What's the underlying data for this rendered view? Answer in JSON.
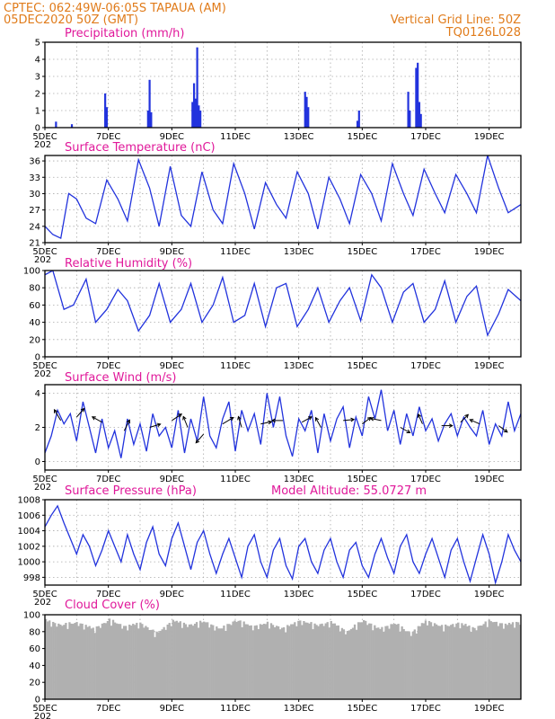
{
  "header": {
    "line1": "CPTEC:   062:49W-06:05S   TAPAUA (AM)",
    "line2": "05DEC2020 50Z (GMT)",
    "right1": "Vertical Grid Line: 50Z",
    "right2": "TQ0126L028"
  },
  "colors": {
    "header": "#e07b1a",
    "title": "#e0189a",
    "line": "#2233dd",
    "cloud": "#b0b0b0"
  },
  "x_axis": {
    "tick_labels": [
      "5DEC",
      "7DEC",
      "9DEC",
      "11DEC",
      "13DEC",
      "15DEC",
      "17DEC",
      "19DEC"
    ],
    "clipped_year_label": "202",
    "start_day": 5,
    "end_day": 20
  },
  "chart_data": [
    {
      "id": "precipitation",
      "type": "bar",
      "title": "Precipitation (mm/h)",
      "ylim": [
        0,
        5
      ],
      "yticks": [
        0,
        1,
        2,
        3,
        4,
        5
      ],
      "grid": true,
      "x": [
        5.35,
        5.85,
        6.9,
        6.95,
        8.25,
        8.3,
        8.35,
        9.65,
        9.7,
        9.75,
        9.8,
        9.85,
        9.9,
        13.2,
        13.25,
        13.3,
        14.85,
        14.9,
        16.45,
        16.5,
        16.7,
        16.75,
        16.8,
        16.85
      ],
      "values": [
        0.35,
        0.2,
        2.0,
        1.2,
        1.0,
        2.8,
        0.9,
        1.5,
        2.6,
        1.7,
        4.7,
        1.3,
        1.0,
        2.1,
        1.8,
        1.2,
        0.4,
        1.0,
        2.1,
        1.0,
        3.5,
        3.8,
        1.5,
        0.8
      ]
    },
    {
      "id": "temperature",
      "type": "line",
      "title": "Surface Temperature (nC)",
      "ylim": [
        21,
        37
      ],
      "yticks": [
        21,
        24,
        27,
        30,
        33,
        36
      ],
      "grid": true,
      "x": [
        5.0,
        5.25,
        5.5,
        5.75,
        6.0,
        6.3,
        6.6,
        6.95,
        7.3,
        7.6,
        7.95,
        8.3,
        8.6,
        8.95,
        9.3,
        9.6,
        9.95,
        10.3,
        10.6,
        10.95,
        11.3,
        11.6,
        11.95,
        12.3,
        12.6,
        12.95,
        13.3,
        13.6,
        13.95,
        14.3,
        14.6,
        14.95,
        15.3,
        15.6,
        15.95,
        16.3,
        16.6,
        16.95,
        17.3,
        17.6,
        17.95,
        18.3,
        18.6,
        18.95,
        19.3,
        19.6,
        20.0
      ],
      "values": [
        24.0,
        22.5,
        21.8,
        30.0,
        29.0,
        25.5,
        24.5,
        32.5,
        29.0,
        25.0,
        36.2,
        31.0,
        24.0,
        35.0,
        26.0,
        24.0,
        34.0,
        27.0,
        24.5,
        35.5,
        30.0,
        23.5,
        32.0,
        28.0,
        25.5,
        34.0,
        30.0,
        23.5,
        33.0,
        29.0,
        24.5,
        33.5,
        30.0,
        25.0,
        35.5,
        30.0,
        26.0,
        34.5,
        30.0,
        26.5,
        33.5,
        30.0,
        26.5,
        37.0,
        31.0,
        26.5,
        28.0
      ]
    },
    {
      "id": "humidity",
      "type": "line",
      "title": "Relative Humidity (%)",
      "ylim": [
        0,
        100
      ],
      "yticks": [
        0,
        20,
        40,
        60,
        80,
        100
      ],
      "grid": true,
      "x": [
        5.0,
        5.25,
        5.6,
        5.9,
        6.3,
        6.6,
        6.95,
        7.3,
        7.6,
        7.95,
        8.3,
        8.6,
        8.95,
        9.3,
        9.6,
        9.95,
        10.3,
        10.6,
        10.95,
        11.3,
        11.6,
        11.95,
        12.3,
        12.6,
        12.95,
        13.3,
        13.6,
        13.95,
        14.3,
        14.6,
        14.95,
        15.3,
        15.6,
        15.95,
        16.3,
        16.6,
        16.95,
        17.3,
        17.6,
        17.95,
        18.3,
        18.6,
        18.95,
        19.3,
        19.6,
        20.0
      ],
      "values": [
        95.0,
        100.0,
        55.0,
        60.0,
        90.0,
        40.0,
        55.0,
        78.0,
        65.0,
        30.0,
        48.0,
        85.0,
        40.0,
        55.0,
        85.0,
        40.0,
        60.0,
        92.0,
        40.0,
        48.0,
        85.0,
        35.0,
        80.0,
        85.0,
        35.0,
        55.0,
        80.0,
        40.0,
        65.0,
        80.0,
        42.0,
        95.0,
        80.0,
        40.0,
        75.0,
        85.0,
        40.0,
        55.0,
        88.0,
        40.0,
        70.0,
        82.0,
        25.0,
        50.0,
        78.0,
        65.0
      ]
    },
    {
      "id": "wind",
      "type": "line",
      "title": "Surface Wind (m/s)",
      "ylim": [
        -0.5,
        4.5
      ],
      "yticks": [
        0,
        2,
        4
      ],
      "grid": true,
      "x": [
        5.0,
        5.2,
        5.4,
        5.6,
        5.8,
        6.0,
        6.2,
        6.4,
        6.6,
        6.8,
        7.0,
        7.2,
        7.4,
        7.6,
        7.8,
        8.0,
        8.2,
        8.4,
        8.6,
        8.8,
        9.0,
        9.2,
        9.4,
        9.6,
        9.8,
        10.0,
        10.2,
        10.4,
        10.6,
        10.8,
        11.0,
        11.2,
        11.4,
        11.6,
        11.8,
        12.0,
        12.2,
        12.4,
        12.6,
        12.8,
        13.0,
        13.2,
        13.4,
        13.6,
        13.8,
        14.0,
        14.2,
        14.4,
        14.6,
        14.8,
        15.0,
        15.2,
        15.4,
        15.6,
        15.8,
        16.0,
        16.2,
        16.4,
        16.6,
        16.8,
        17.0,
        17.2,
        17.4,
        17.6,
        17.8,
        18.0,
        18.2,
        18.4,
        18.6,
        18.8,
        19.0,
        19.2,
        19.4,
        19.6,
        19.8,
        20.0
      ],
      "values": [
        0.5,
        1.5,
        3.0,
        2.2,
        2.8,
        1.2,
        3.5,
        2.0,
        0.5,
        2.5,
        0.8,
        1.8,
        0.2,
        2.5,
        1.0,
        2.2,
        0.6,
        2.8,
        1.5,
        2.0,
        0.8,
        3.0,
        0.5,
        2.5,
        1.2,
        3.8,
        1.5,
        0.8,
        2.5,
        3.5,
        0.6,
        3.0,
        1.8,
        2.8,
        1.0,
        4.0,
        2.0,
        3.8,
        1.5,
        0.3,
        2.5,
        1.8,
        3.0,
        0.5,
        2.8,
        1.2,
        2.5,
        3.2,
        0.8,
        2.6,
        1.5,
        3.8,
        2.5,
        4.2,
        1.8,
        3.0,
        1.0,
        2.8,
        1.5,
        3.2,
        1.8,
        2.5,
        1.2,
        2.2,
        2.8,
        1.5,
        2.6,
        2.0,
        1.5,
        3.0,
        1.0,
        2.2,
        1.5,
        3.5,
        1.8,
        2.8
      ],
      "vectors": [
        {
          "x": 5.5,
          "y": 2.4,
          "u": -0.6,
          "v": 1.0
        },
        {
          "x": 6.0,
          "y": 2.6,
          "u": 0.7,
          "v": 0.8
        },
        {
          "x": 6.8,
          "y": 2.3,
          "u": -0.9,
          "v": 0.5
        },
        {
          "x": 7.5,
          "y": 1.8,
          "u": 0.5,
          "v": 1.0
        },
        {
          "x": 8.3,
          "y": 2.0,
          "u": 1.0,
          "v": 0.3
        },
        {
          "x": 9.0,
          "y": 2.4,
          "u": 0.9,
          "v": 0.6
        },
        {
          "x": 9.5,
          "y": 2.0,
          "u": -0.4,
          "v": 1.0
        },
        {
          "x": 10.0,
          "y": 1.6,
          "u": -0.7,
          "v": -0.8
        },
        {
          "x": 10.6,
          "y": 2.2,
          "u": 1.0,
          "v": 0.6
        },
        {
          "x": 11.2,
          "y": 2.0,
          "u": -0.3,
          "v": 1.0
        },
        {
          "x": 11.8,
          "y": 2.2,
          "u": 1.0,
          "v": 0.2
        },
        {
          "x": 12.5,
          "y": 2.4,
          "u": -1.0,
          "v": 0.0
        },
        {
          "x": 13.1,
          "y": 2.3,
          "u": 0.9,
          "v": 0.5
        },
        {
          "x": 13.7,
          "y": 2.0,
          "u": -0.5,
          "v": 0.9
        },
        {
          "x": 14.4,
          "y": 2.4,
          "u": 1.0,
          "v": 0.1
        },
        {
          "x": 15.0,
          "y": 2.2,
          "u": 0.8,
          "v": 0.6
        },
        {
          "x": 15.6,
          "y": 2.4,
          "u": -1.0,
          "v": 0.2
        },
        {
          "x": 16.2,
          "y": 2.0,
          "u": 0.9,
          "v": -0.5
        },
        {
          "x": 16.9,
          "y": 2.2,
          "u": -0.4,
          "v": 0.9
        },
        {
          "x": 17.5,
          "y": 2.1,
          "u": 1.0,
          "v": 0.0
        },
        {
          "x": 18.1,
          "y": 2.3,
          "u": 0.7,
          "v": 0.7
        },
        {
          "x": 18.7,
          "y": 2.2,
          "u": -0.9,
          "v": 0.4
        },
        {
          "x": 19.3,
          "y": 2.1,
          "u": 0.8,
          "v": -0.6
        }
      ]
    },
    {
      "id": "pressure",
      "type": "line",
      "title": "Surface Pressure (hPa)",
      "annotation": "Model Altitude: 55.0727 m",
      "ylim": [
        997,
        1008
      ],
      "yticks": [
        998,
        1000,
        1002,
        1004,
        1006,
        1008
      ],
      "grid": true,
      "x": [
        5.0,
        5.2,
        5.4,
        5.6,
        5.8,
        6.0,
        6.2,
        6.4,
        6.6,
        6.8,
        7.0,
        7.2,
        7.4,
        7.6,
        7.8,
        8.0,
        8.2,
        8.4,
        8.6,
        8.8,
        9.0,
        9.2,
        9.4,
        9.6,
        9.8,
        10.0,
        10.2,
        10.4,
        10.6,
        10.8,
        11.0,
        11.2,
        11.4,
        11.6,
        11.8,
        12.0,
        12.2,
        12.4,
        12.6,
        12.8,
        13.0,
        13.2,
        13.4,
        13.6,
        13.8,
        14.0,
        14.2,
        14.4,
        14.6,
        14.8,
        15.0,
        15.2,
        15.4,
        15.6,
        15.8,
        16.0,
        16.2,
        16.4,
        16.6,
        16.8,
        17.0,
        17.2,
        17.4,
        17.6,
        17.8,
        18.0,
        18.2,
        18.4,
        18.6,
        18.8,
        19.0,
        19.2,
        19.4,
        19.6,
        19.8,
        20.0
      ],
      "values": [
        1004.5,
        1006.0,
        1007.2,
        1005.0,
        1003.0,
        1001.0,
        1003.5,
        1002.0,
        999.5,
        1001.5,
        1004.0,
        1002.0,
        1000.0,
        1003.5,
        1001.0,
        999.0,
        1002.5,
        1004.5,
        1001.0,
        999.5,
        1003.0,
        1005.0,
        1002.0,
        999.0,
        1002.5,
        1004.0,
        1001.0,
        998.5,
        1001.0,
        1003.0,
        1000.5,
        998.0,
        1002.0,
        1003.5,
        1000.0,
        998.0,
        1001.5,
        1003.0,
        999.5,
        997.8,
        1002.0,
        1003.0,
        1000.0,
        998.5,
        1001.5,
        1003.0,
        1000.0,
        998.0,
        1001.5,
        1002.5,
        999.5,
        998.0,
        1001.0,
        1003.0,
        1000.5,
        998.5,
        1002.0,
        1003.5,
        1000.0,
        998.5,
        1001.0,
        1003.0,
        1000.5,
        998.0,
        1001.5,
        1003.0,
        1000.0,
        997.5,
        1000.5,
        1003.5,
        1001.0,
        997.3,
        1000.0,
        1003.5,
        1001.5,
        1000.0
      ]
    },
    {
      "id": "cloud",
      "type": "area",
      "title": "Cloud Cover (%)",
      "ylim": [
        0,
        100
      ],
      "yticks": [
        0,
        20,
        40,
        60,
        80,
        100
      ],
      "grid": true,
      "x": [
        5.0,
        5.5,
        6.0,
        6.5,
        7.0,
        7.5,
        8.0,
        8.5,
        9.0,
        9.5,
        10.0,
        10.5,
        11.0,
        11.5,
        12.0,
        12.5,
        13.0,
        13.5,
        14.0,
        14.5,
        15.0,
        15.5,
        16.0,
        16.5,
        17.0,
        17.5,
        18.0,
        18.5,
        19.0,
        19.5,
        20.0
      ],
      "values": [
        95,
        90,
        93,
        85,
        96,
        88,
        92,
        80,
        95,
        90,
        94,
        85,
        96,
        88,
        92,
        86,
        95,
        90,
        93,
        82,
        96,
        85,
        92,
        80,
        95,
        88,
        92,
        86,
        95,
        90,
        94
      ]
    }
  ]
}
